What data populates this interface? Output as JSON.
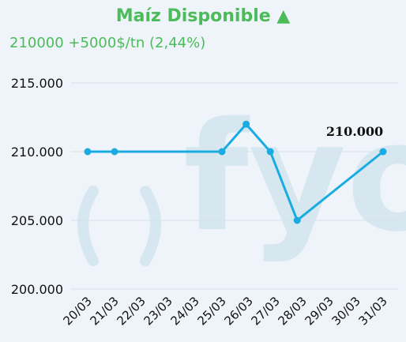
{
  "header": {
    "title": "Maíz Disponible ▲",
    "subtitle": "210000  +5000$/tn (2,44%)"
  },
  "colors": {
    "line": "#1aace0",
    "title": "#4cbb5a",
    "grid": "#d6e2ec",
    "watermark": "#cfe3ee"
  },
  "watermark": {
    "text": "fyo"
  },
  "chart_data": {
    "type": "line",
    "title": "Maíz Disponible",
    "xlabel": "",
    "ylabel": "",
    "categories": [
      "20/03",
      "21/03",
      "22/03",
      "23/03",
      "24/03",
      "25/03",
      "26/03",
      "27/03",
      "28/03",
      "29/03",
      "30/03",
      "31/03"
    ],
    "series": [
      {
        "name": "",
        "points": [
          {
            "x": 0,
            "y": 210000
          },
          {
            "x": 1,
            "y": 210000
          },
          {
            "x": 5,
            "y": 210000
          },
          {
            "x": 5.9,
            "y": 212000
          },
          {
            "x": 6.8,
            "y": 210000
          },
          {
            "x": 7.8,
            "y": 205000
          },
          {
            "x": 11,
            "y": 210000
          }
        ]
      }
    ],
    "yticks": [
      {
        "value": 200000,
        "label": "200.000"
      },
      {
        "value": 205000,
        "label": "205.000"
      },
      {
        "value": 210000,
        "label": "210.000"
      },
      {
        "value": 215000,
        "label": "215.000"
      }
    ],
    "ylim": [
      200000,
      215000
    ],
    "data_label": {
      "text": "210.000"
    },
    "grid": true,
    "legend": "none"
  }
}
